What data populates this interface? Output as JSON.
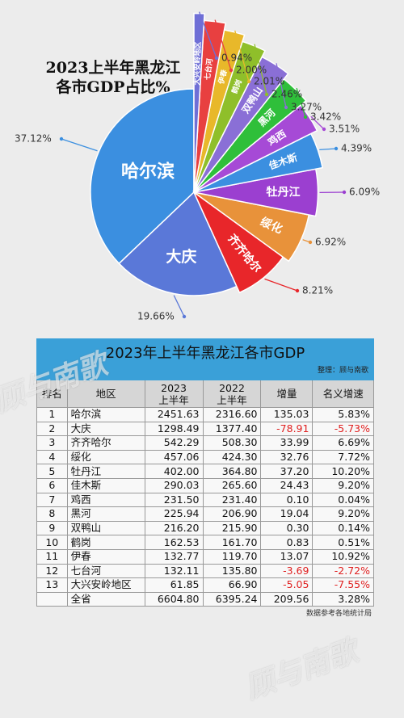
{
  "pie": {
    "title_line1": "2023上半年黑龙江",
    "title_line2": "各市GDP占比%"
  },
  "chart_data": [
    {
      "type": "pie",
      "title": "2023上半年黑龙江各市GDP占比%",
      "slices": [
        {
          "label": "哈尔滨",
          "value": 37.12,
          "pct": "37.12%",
          "color": "#3b8fe0"
        },
        {
          "label": "大庆",
          "value": 19.66,
          "pct": "19.66%",
          "color": "#5a78d8"
        },
        {
          "label": "齐齐哈尔",
          "value": 8.21,
          "pct": "8.21%",
          "color": "#e8262a"
        },
        {
          "label": "绥化",
          "value": 6.92,
          "pct": "6.92%",
          "color": "#e8923a"
        },
        {
          "label": "牡丹江",
          "value": 6.09,
          "pct": "6.09%",
          "color": "#9b3fd0"
        },
        {
          "label": "佳木斯",
          "value": 4.39,
          "pct": "4.39%",
          "color": "#3b8fe0"
        },
        {
          "label": "鸡西",
          "value": 3.51,
          "pct": "3.51%",
          "color": "#a64ad6"
        },
        {
          "label": "黑河",
          "value": 3.42,
          "pct": "3.42%",
          "color": "#2fbf3a"
        },
        {
          "label": "双鸭山",
          "value": 3.27,
          "pct": "3.27%",
          "color": "#8a6fd6"
        },
        {
          "label": "鹤岗",
          "value": 2.46,
          "pct": "2.46%",
          "color": "#8fbf2a"
        },
        {
          "label": "伊春",
          "value": 2.01,
          "pct": "2.01%",
          "color": "#e8b82a"
        },
        {
          "label": "七台河",
          "value": 2.0,
          "pct": "2.00%",
          "color": "#e84040"
        },
        {
          "label": "大兴安岭地区",
          "value": 0.94,
          "pct": "0.94%",
          "color": "#6f6fd6"
        }
      ]
    },
    {
      "type": "table",
      "title": "2023年上半年黑龙江各市GDP",
      "columns": [
        "排名",
        "地区",
        "2023上半年",
        "2022上半年",
        "增量",
        "名义增速"
      ],
      "rows": [
        [
          "1",
          "哈尔滨",
          "2451.63",
          "2316.60",
          "135.03",
          "5.83%"
        ],
        [
          "2",
          "大庆",
          "1298.49",
          "1377.40",
          "-78.91",
          "-5.73%"
        ],
        [
          "3",
          "齐齐哈尔",
          "542.29",
          "508.30",
          "33.99",
          "6.69%"
        ],
        [
          "4",
          "绥化",
          "457.06",
          "424.30",
          "32.76",
          "7.72%"
        ],
        [
          "5",
          "牡丹江",
          "402.00",
          "364.80",
          "37.20",
          "10.20%"
        ],
        [
          "6",
          "佳木斯",
          "290.03",
          "265.60",
          "24.43",
          "9.20%"
        ],
        [
          "7",
          "鸡西",
          "231.50",
          "231.40",
          "0.10",
          "0.04%"
        ],
        [
          "8",
          "黑河",
          "225.94",
          "206.90",
          "19.04",
          "9.20%"
        ],
        [
          "9",
          "双鸭山",
          "216.20",
          "215.90",
          "0.30",
          "0.14%"
        ],
        [
          "10",
          "鹤岗",
          "162.53",
          "161.70",
          "0.83",
          "0.51%"
        ],
        [
          "11",
          "伊春",
          "132.77",
          "119.70",
          "13.07",
          "10.92%"
        ],
        [
          "12",
          "七台河",
          "132.11",
          "135.80",
          "-3.69",
          "-2.72%"
        ],
        [
          "13",
          "大兴安岭地区",
          "61.85",
          "66.90",
          "-5.05",
          "-7.55%"
        ],
        [
          "",
          "全省",
          "6604.80",
          "6395.24",
          "209.56",
          "3.28%"
        ]
      ]
    }
  ],
  "table": {
    "title": "2023年上半年黑龙江各市GDP",
    "credit": "整理：顾与南歌",
    "headers": {
      "rank": "排名",
      "region": "地区",
      "y2023_a": "2023",
      "y2023_b": "上半年",
      "y2022_a": "2022",
      "y2022_b": "上半年",
      "increase": "增量",
      "growth": "名义增速"
    },
    "source": "数据参考各地统计局"
  },
  "watermark": "顾与南歌",
  "negative_color": "#e02020"
}
